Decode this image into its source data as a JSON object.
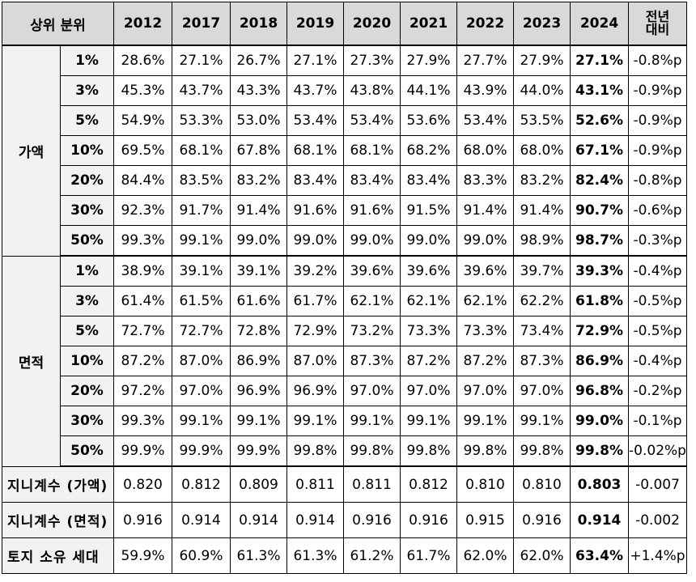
{
  "header": {
    "rank": "상위 분위",
    "years": [
      "2012",
      "2017",
      "2018",
      "2019",
      "2020",
      "2021",
      "2022",
      "2023",
      "2024"
    ],
    "change": "전년대비"
  },
  "groups": [
    {
      "label": "가액",
      "rows": [
        {
          "p": "1%",
          "v": [
            "28.6%",
            "27.1%",
            "26.7%",
            "27.1%",
            "27.3%",
            "27.9%",
            "27.7%",
            "27.9%",
            "27.1%"
          ],
          "c": "-0.8%p"
        },
        {
          "p": "3%",
          "v": [
            "45.3%",
            "43.7%",
            "43.3%",
            "43.7%",
            "43.8%",
            "44.1%",
            "43.9%",
            "44.0%",
            "43.1%"
          ],
          "c": "-0.9%p"
        },
        {
          "p": "5%",
          "v": [
            "54.9%",
            "53.3%",
            "53.0%",
            "53.4%",
            "53.4%",
            "53.6%",
            "53.4%",
            "53.5%",
            "52.6%"
          ],
          "c": "-0.9%p"
        },
        {
          "p": "10%",
          "v": [
            "69.5%",
            "68.1%",
            "67.8%",
            "68.1%",
            "68.1%",
            "68.2%",
            "68.0%",
            "68.0%",
            "67.1%"
          ],
          "c": "-0.9%p"
        },
        {
          "p": "20%",
          "v": [
            "84.4%",
            "83.5%",
            "83.2%",
            "83.4%",
            "83.4%",
            "83.4%",
            "83.3%",
            "83.2%",
            "82.4%"
          ],
          "c": "-0.8%p"
        },
        {
          "p": "30%",
          "v": [
            "92.3%",
            "91.7%",
            "91.4%",
            "91.6%",
            "91.6%",
            "91.5%",
            "91.4%",
            "91.4%",
            "90.7%"
          ],
          "c": "-0.6%p"
        },
        {
          "p": "50%",
          "v": [
            "99.3%",
            "99.1%",
            "99.0%",
            "99.0%",
            "99.0%",
            "99.0%",
            "99.0%",
            "98.9%",
            "98.7%"
          ],
          "c": "-0.3%p"
        }
      ]
    },
    {
      "label": "면적",
      "rows": [
        {
          "p": "1%",
          "v": [
            "38.9%",
            "39.1%",
            "39.1%",
            "39.2%",
            "39.6%",
            "39.6%",
            "39.6%",
            "39.7%",
            "39.3%"
          ],
          "c": "-0.4%p"
        },
        {
          "p": "3%",
          "v": [
            "61.4%",
            "61.5%",
            "61.6%",
            "61.7%",
            "62.1%",
            "62.1%",
            "62.1%",
            "62.2%",
            "61.8%"
          ],
          "c": "-0.5%p"
        },
        {
          "p": "5%",
          "v": [
            "72.7%",
            "72.7%",
            "72.8%",
            "72.9%",
            "73.2%",
            "73.3%",
            "73.3%",
            "73.4%",
            "72.9%"
          ],
          "c": "-0.5%p"
        },
        {
          "p": "10%",
          "v": [
            "87.2%",
            "87.0%",
            "86.9%",
            "87.0%",
            "87.3%",
            "87.2%",
            "87.2%",
            "87.3%",
            "86.9%"
          ],
          "c": "-0.4%p"
        },
        {
          "p": "20%",
          "v": [
            "97.2%",
            "97.0%",
            "96.9%",
            "96.9%",
            "97.0%",
            "97.0%",
            "97.0%",
            "97.0%",
            "96.8%"
          ],
          "c": "-0.2%p"
        },
        {
          "p": "30%",
          "v": [
            "99.3%",
            "99.1%",
            "99.1%",
            "99.1%",
            "99.1%",
            "99.1%",
            "99.1%",
            "99.1%",
            "99.0%"
          ],
          "c": "-0.1%p"
        },
        {
          "p": "50%",
          "v": [
            "99.9%",
            "99.9%",
            "99.9%",
            "99.8%",
            "99.8%",
            "99.8%",
            "99.8%",
            "99.8%",
            "99.8%"
          ],
          "c": "-0.02%p"
        }
      ]
    }
  ],
  "summary": [
    {
      "label": "지니계수 (가액)",
      "v": [
        "0.820",
        "0.812",
        "0.809",
        "0.811",
        "0.811",
        "0.812",
        "0.810",
        "0.810",
        "0.803"
      ],
      "c": "-0.007"
    },
    {
      "label": "지니계수 (면적)",
      "v": [
        "0.916",
        "0.914",
        "0.914",
        "0.914",
        "0.916",
        "0.916",
        "0.915",
        "0.916",
        "0.914"
      ],
      "c": "-0.002"
    },
    {
      "label": "토지 소유 세대",
      "v": [
        "59.9%",
        "60.9%",
        "61.3%",
        "61.3%",
        "61.2%",
        "61.7%",
        "62.0%",
        "62.0%",
        "63.4%"
      ],
      "c": "+1.4%p"
    }
  ]
}
